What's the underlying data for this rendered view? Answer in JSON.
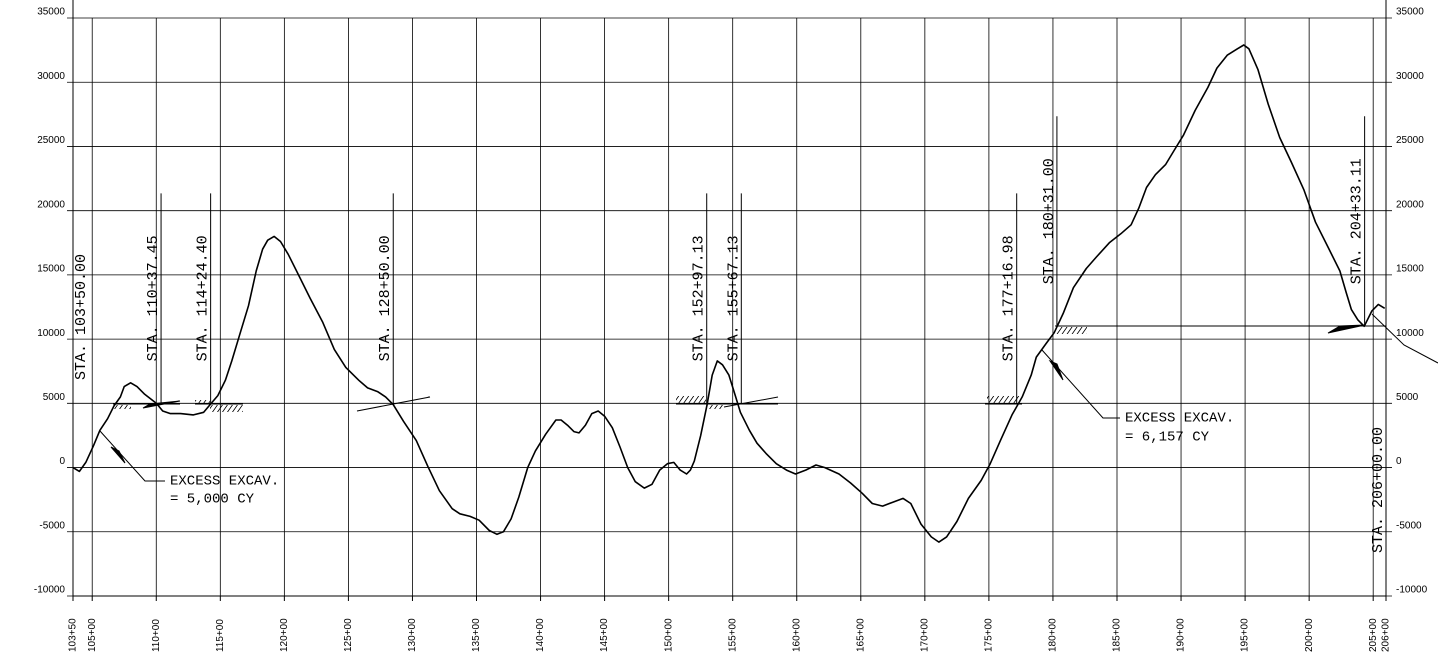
{
  "chart_data": {
    "type": "line",
    "color": "#000000",
    "x": [
      103.5,
      104.0,
      104.5,
      105.1,
      105.6,
      106.2,
      106.7,
      107.2,
      107.5,
      108.0,
      108.5,
      109.1,
      110.0,
      110.5,
      111.1,
      111.9,
      112.9,
      113.7,
      114.2,
      114.8,
      115.4,
      115.9,
      116.5,
      117.2,
      117.8,
      118.3,
      118.7,
      119.2,
      119.7,
      120.3,
      121.1,
      122.0,
      123.0,
      123.9,
      124.8,
      125.8,
      126.5,
      127.3,
      127.9,
      128.5,
      129.3,
      130.3,
      131.2,
      132.1,
      133.1,
      133.7,
      134.5,
      135.2,
      136.0,
      136.6,
      137.1,
      137.7,
      138.3,
      139.0,
      139.6,
      140.4,
      141.2,
      141.6,
      142.1,
      142.6,
      143.0,
      143.5,
      144.0,
      144.5,
      145.0,
      145.6,
      146.2,
      146.8,
      147.4,
      148.1,
      148.7,
      149.3,
      149.9,
      150.4,
      150.9,
      151.4,
      151.7,
      152.0,
      152.5,
      153.0,
      153.4,
      153.8,
      154.2,
      154.7,
      155.2,
      155.6,
      156.3,
      156.9,
      157.6,
      158.4,
      159.2,
      159.9,
      160.7,
      161.5,
      162.2,
      163.3,
      164.2,
      165.1,
      165.9,
      166.7,
      167.5,
      168.3,
      168.9,
      169.7,
      170.5,
      171.1,
      171.7,
      172.5,
      173.4,
      174.4,
      175.1,
      175.9,
      176.8,
      177.6,
      178.3,
      178.7,
      179.5,
      180.1,
      180.8,
      181.6,
      182.6,
      183.4,
      184.4,
      185.3,
      186.1,
      186.7,
      187.3,
      188.0,
      188.8,
      189.4,
      190.2,
      191.1,
      192.1,
      192.8,
      193.6,
      194.4,
      194.9,
      195.3,
      196.0,
      196.8,
      197.7,
      198.6,
      199.6,
      200.5,
      201.5,
      202.4,
      202.9,
      203.3,
      203.8,
      204.3,
      204.9,
      205.4,
      205.9
    ],
    "values": [
      0,
      -300,
      400,
      1700,
      2900,
      3800,
      4800,
      5500,
      6300,
      6600,
      6300,
      5700,
      5000,
      4400,
      4200,
      4200,
      4100,
      4300,
      4900,
      5600,
      6800,
      8300,
      10300,
      12600,
      15300,
      17000,
      17700,
      18000,
      17600,
      16600,
      15000,
      13200,
      11300,
      9200,
      7800,
      6800,
      6200,
      5900,
      5500,
      4900,
      3600,
      2100,
      100,
      -1800,
      -3200,
      -3600,
      -3800,
      -4100,
      -4900,
      -5200,
      -5000,
      -4000,
      -2300,
      0,
      1300,
      2600,
      3700,
      3700,
      3300,
      2800,
      2700,
      3300,
      4200,
      4400,
      4000,
      3100,
      1600,
      0,
      -1100,
      -1600,
      -1300,
      -200,
      300,
      400,
      -200,
      -500,
      -200,
      500,
      2500,
      4900,
      7200,
      8300,
      8000,
      7200,
      5600,
      4300,
      2900,
      1900,
      1100,
      300,
      -200,
      -500,
      -200,
      200,
      0,
      -500,
      -1200,
      -2000,
      -2800,
      -3000,
      -2700,
      -2400,
      -2800,
      -4400,
      -5400,
      -5800,
      -5400,
      -4200,
      -2400,
      -1000,
      300,
      2100,
      4100,
      5500,
      7200,
      8600,
      9700,
      10500,
      12000,
      14000,
      15500,
      16400,
      17500,
      18200,
      18900,
      20200,
      21800,
      22800,
      23600,
      24600,
      25900,
      27800,
      29600,
      31100,
      32100,
      32600,
      32900,
      32600,
      31000,
      28300,
      25700,
      23800,
      21600,
      19100,
      17100,
      15300,
      13600,
      12300,
      11500,
      11000,
      12200,
      12700,
      12400
    ],
    "xlim": [
      103.5,
      206
    ],
    "xticks": [
      {
        "value": 103.5,
        "label": "103+50"
      },
      {
        "value": 105,
        "label": "105+00"
      },
      {
        "value": 110,
        "label": "110+00"
      },
      {
        "value": 115,
        "label": "115+00"
      },
      {
        "value": 120,
        "label": "120+00"
      },
      {
        "value": 125,
        "label": "125+00"
      },
      {
        "value": 130,
        "label": "130+00"
      },
      {
        "value": 135,
        "label": "135+00"
      },
      {
        "value": 140,
        "label": "140+00"
      },
      {
        "value": 145,
        "label": "145+00"
      },
      {
        "value": 150,
        "label": "150+00"
      },
      {
        "value": 155,
        "label": "155+00"
      },
      {
        "value": 160,
        "label": "160+00"
      },
      {
        "value": 165,
        "label": "165+00"
      },
      {
        "value": 170,
        "label": "170+00"
      },
      {
        "value": 175,
        "label": "175+00"
      },
      {
        "value": 180,
        "label": "180+00"
      },
      {
        "value": 185,
        "label": "185+00"
      },
      {
        "value": 190,
        "label": "190+00"
      },
      {
        "value": 195,
        "label": "195+00"
      },
      {
        "value": 200,
        "label": "200+00"
      },
      {
        "value": 205,
        "label": "205+00"
      },
      {
        "value": 206,
        "label": "206+00"
      }
    ],
    "ylim": [
      -10000,
      35000
    ],
    "yticks": [
      -10000,
      -5000,
      0,
      5000,
      10000,
      15000,
      20000,
      25000,
      30000,
      35000
    ],
    "grid": true,
    "stations": [
      {
        "label": "STA. 103+50.00",
        "x": 103.5
      },
      {
        "label": "STA. 110+37.45",
        "x": 110.3745,
        "y": 5000
      },
      {
        "label": "STA. 114+24.40",
        "x": 114.244,
        "y": 5000
      },
      {
        "label": "STA. 128+50.00",
        "x": 128.5,
        "y": 5000
      },
      {
        "label": "STA. 152+97.13",
        "x": 152.9713,
        "y": 5000
      },
      {
        "label": "STA. 155+67.13",
        "x": 155.6713,
        "y": 5000
      },
      {
        "label": "STA. 177+16.98",
        "x": 177.1698,
        "y": 5000
      },
      {
        "label": "STA. 180+31.00",
        "x": 180.31,
        "y": 11000
      },
      {
        "label": "STA. 204+33.11",
        "x": 204.3311,
        "y": 11000
      },
      {
        "label": "STA. 206+00.00",
        "x": 206
      }
    ],
    "notes": [
      {
        "line1": "EXCESS EXCAV.",
        "line2": "= 5,000 CY"
      },
      {
        "line1": "EXCESS EXCAV.",
        "line2": "= 6,157 CY"
      }
    ]
  }
}
